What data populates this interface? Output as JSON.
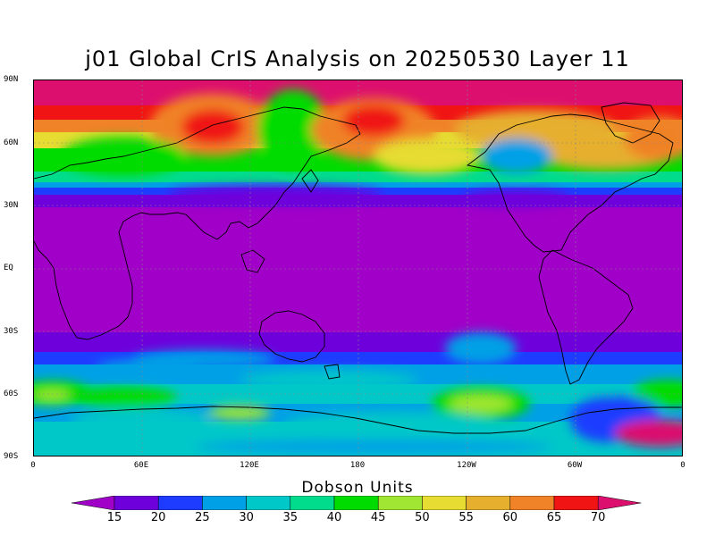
{
  "title": "j01 Global CrIS Analysis on 20250530 Layer 11",
  "lat_ticks": [
    "90N",
    "60N",
    "30N",
    "EQ",
    "30S",
    "60S",
    "90S"
  ],
  "lon_ticks": [
    "0",
    "60E",
    "120E",
    "180",
    "120W",
    "60W",
    "0"
  ],
  "colorbar": {
    "title": "Dobson Units",
    "levels": [
      "15",
      "20",
      "25",
      "30",
      "35",
      "40",
      "45",
      "50",
      "55",
      "60",
      "65",
      "70"
    ],
    "colors": [
      "#a000c8",
      "#6e00dc",
      "#1e3cff",
      "#00a0e6",
      "#00c8c8",
      "#00dc8c",
      "#00dc00",
      "#a0e632",
      "#e6dc32",
      "#e6af2d",
      "#f08228",
      "#f01414",
      "#dc0f6e"
    ]
  },
  "chart_data": {
    "type": "heatmap",
    "title": "j01 Global CrIS Analysis on 20250530 Layer 11",
    "xlabel": "",
    "ylabel": "",
    "x_range": [
      "0",
      "0"
    ],
    "y_range": [
      "90S",
      "90N"
    ],
    "units": "Dobson Units",
    "value_range": [
      15,
      70
    ],
    "grid": true
  }
}
